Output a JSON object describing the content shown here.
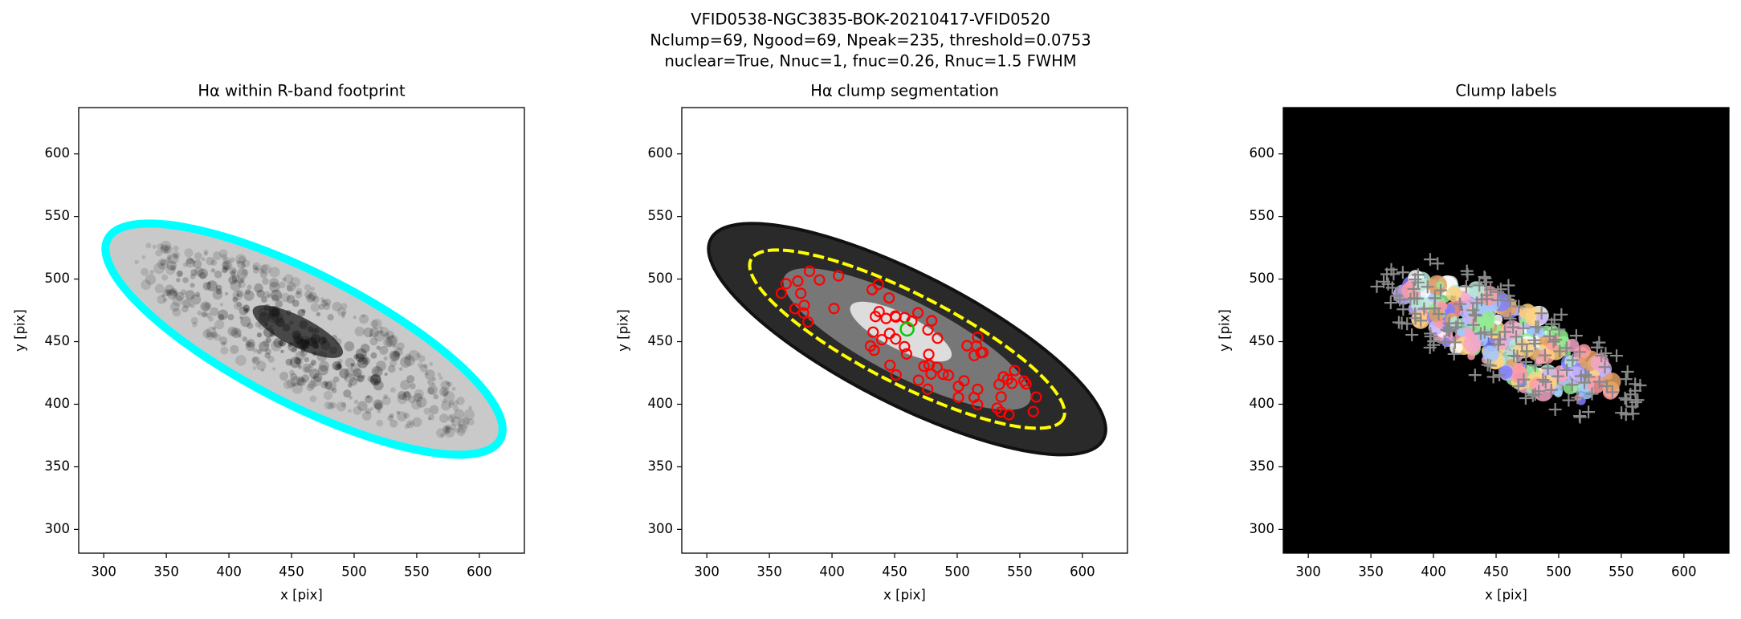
{
  "figure_title": [
    "VFID0538-NGC3835-BOK-20210417-VFID0520",
    "Nclump=69, Ngood=69, Npeak=235, threshold=0.0753",
    "nuclear=True, Nnuc=1, fnuc=0.26, Rnuc=1.5 FWHM"
  ],
  "chart_data": [
    {
      "type": "image",
      "title": "Hα within R-band footprint",
      "xlabel": "x [pix]",
      "ylabel": "y [pix]",
      "xlim": [
        280,
        636
      ],
      "ylim": [
        281,
        637
      ],
      "xticks": [
        300,
        350,
        400,
        450,
        500,
        550,
        600
      ],
      "yticks": [
        300,
        350,
        400,
        450,
        500,
        550,
        600
      ]
    },
    {
      "type": "image",
      "title": "Hα clump segmentation",
      "xlabel": "x [pix]",
      "ylabel": "y [pix]",
      "xlim": [
        280,
        636
      ],
      "ylim": [
        281,
        637
      ],
      "xticks": [
        300,
        350,
        400,
        450,
        500,
        550,
        600
      ],
      "yticks": [
        300,
        350,
        400,
        450,
        500,
        550,
        600
      ]
    },
    {
      "type": "image",
      "title": "Clump labels",
      "xlabel": "x [pix]",
      "ylabel": "y [pix]",
      "xlim": [
        280,
        636
      ],
      "ylim": [
        281,
        637
      ],
      "xticks": [
        300,
        350,
        400,
        450,
        500,
        550,
        600
      ],
      "yticks": [
        300,
        350,
        400,
        450,
        500,
        550,
        600
      ]
    }
  ]
}
